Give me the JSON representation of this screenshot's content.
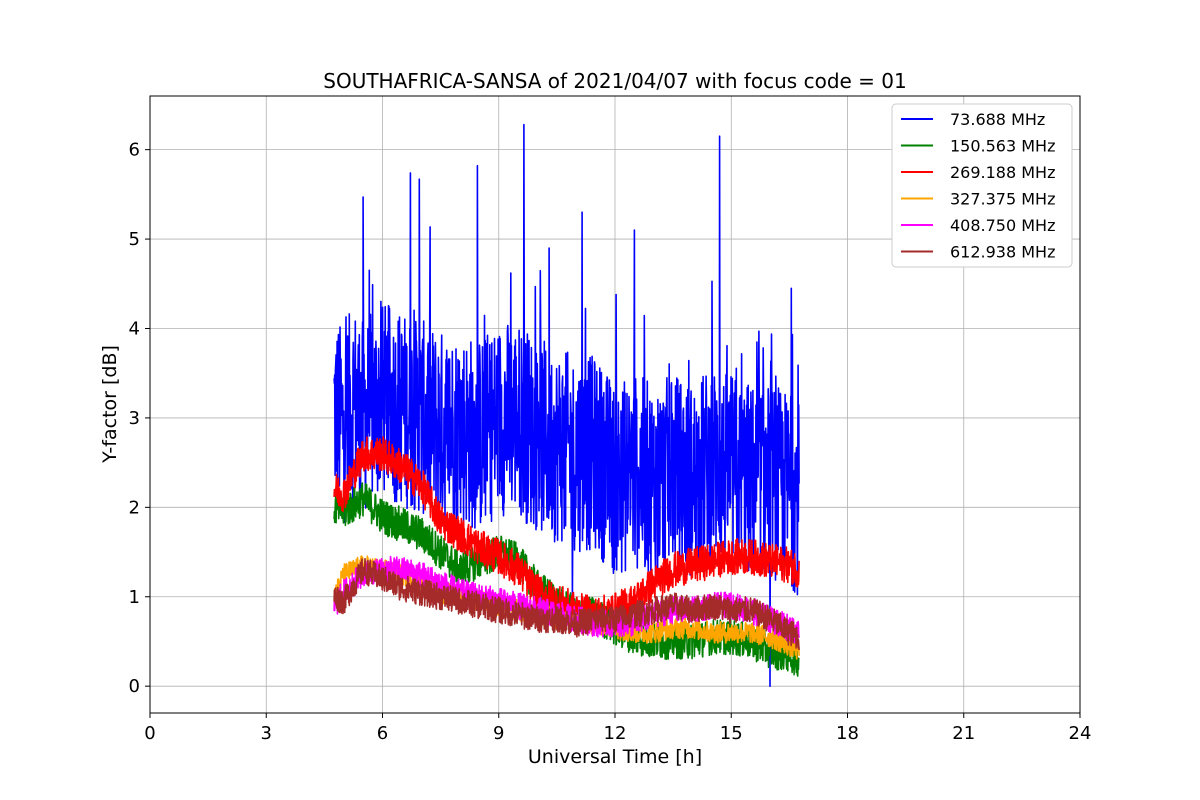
{
  "chart_data": {
    "type": "line",
    "title": "SOUTHAFRICA-SANSA of 2021/04/07 with focus code = 01",
    "xlabel": "Universal Time [h]",
    "ylabel": "Y-factor [dB]",
    "xlim": [
      0,
      24
    ],
    "ylim": [
      -0.3,
      6.6
    ],
    "xticks": [
      0,
      3,
      6,
      9,
      12,
      15,
      18,
      21,
      24
    ],
    "yticks": [
      0,
      1,
      2,
      3,
      4,
      5,
      6
    ],
    "grid": true,
    "legend_position": "top-right",
    "series": [
      {
        "name": " 73.688 MHz",
        "color": "#0000ff",
        "x": [
          4.75,
          5.0,
          5.25,
          5.5,
          5.75,
          6.0,
          6.5,
          7.0,
          7.5,
          8.0,
          8.5,
          9.0,
          9.5,
          10.0,
          10.5,
          11.0,
          11.5,
          12.0,
          12.5,
          13.0,
          13.5,
          14.0,
          14.5,
          15.0,
          15.5,
          16.0,
          16.5,
          16.75
        ],
        "values": [
          3.1,
          2.9,
          3.2,
          3.0,
          3.1,
          3.2,
          3.1,
          3.0,
          2.9,
          2.9,
          2.8,
          3.0,
          3.0,
          2.8,
          2.7,
          2.6,
          2.6,
          2.3,
          2.4,
          2.3,
          2.4,
          2.3,
          2.5,
          2.4,
          2.3,
          2.3,
          2.2,
          2.1
        ],
        "spikes": [
          [
            5.5,
            5.47
          ],
          [
            6.72,
            5.74
          ],
          [
            6.95,
            5.67
          ],
          [
            8.45,
            5.82
          ],
          [
            9.65,
            6.28
          ],
          [
            10.3,
            4.9
          ],
          [
            11.15,
            5.3
          ],
          [
            12.5,
            5.1
          ],
          [
            14.7,
            6.15
          ],
          [
            16.55,
            4.45
          ]
        ],
        "dips": [
          [
            10.9,
            1.0
          ],
          [
            13.1,
            1.2
          ],
          [
            16.0,
            0.0
          ]
        ]
      },
      {
        "name": "150.563 MHz",
        "color": "#008000",
        "x": [
          4.75,
          5.0,
          5.5,
          6.0,
          6.5,
          7.0,
          7.5,
          8.0,
          8.5,
          9.0,
          9.5,
          10.0,
          10.5,
          11.0,
          11.5,
          12.0,
          12.5,
          13.0,
          13.5,
          14.0,
          14.5,
          15.0,
          15.5,
          16.0,
          16.5,
          16.75
        ],
        "values": [
          2.0,
          1.95,
          2.1,
          1.9,
          1.8,
          1.7,
          1.5,
          1.3,
          1.4,
          1.5,
          1.4,
          1.1,
          0.95,
          0.8,
          0.8,
          0.65,
          0.55,
          0.5,
          0.5,
          0.5,
          0.55,
          0.55,
          0.5,
          0.4,
          0.35,
          0.3
        ]
      },
      {
        "name": "269.188 MHz",
        "color": "#ff0000",
        "x": [
          4.75,
          5.0,
          5.5,
          6.0,
          6.5,
          7.0,
          7.5,
          8.0,
          8.5,
          9.0,
          9.5,
          10.0,
          10.5,
          11.0,
          11.5,
          12.0,
          12.5,
          13.0,
          13.5,
          14.0,
          14.5,
          15.0,
          15.5,
          16.0,
          16.5,
          16.75
        ],
        "values": [
          2.2,
          2.15,
          2.6,
          2.6,
          2.45,
          2.25,
          1.85,
          1.7,
          1.55,
          1.45,
          1.3,
          1.05,
          0.95,
          0.85,
          0.8,
          0.85,
          0.95,
          1.15,
          1.3,
          1.35,
          1.4,
          1.45,
          1.45,
          1.4,
          1.35,
          1.3
        ]
      },
      {
        "name": "327.375 MHz",
        "color": "#ffa500",
        "x": [
          4.75,
          5.0,
          5.5,
          6.0,
          6.5,
          7.0,
          7.5,
          8.0,
          8.5,
          9.0,
          9.5,
          10.0,
          10.5,
          11.0,
          11.5,
          12.0,
          12.5,
          13.0,
          13.5,
          14.0,
          14.5,
          15.0,
          15.5,
          16.0,
          16.5,
          16.75
        ],
        "values": [
          1.0,
          1.25,
          1.35,
          1.3,
          1.25,
          1.15,
          1.05,
          1.0,
          0.95,
          0.9,
          0.85,
          0.8,
          0.75,
          0.7,
          0.7,
          0.65,
          0.6,
          0.6,
          0.65,
          0.65,
          0.6,
          0.6,
          0.6,
          0.55,
          0.45,
          0.4
        ]
      },
      {
        "name": "408.750 MHz",
        "color": "#ff00ff",
        "x": [
          4.75,
          5.0,
          5.5,
          6.0,
          6.5,
          7.0,
          7.5,
          8.0,
          8.5,
          9.0,
          9.5,
          10.0,
          10.5,
          11.0,
          11.5,
          12.0,
          12.5,
          13.0,
          13.5,
          14.0,
          14.5,
          15.0,
          15.5,
          16.0,
          16.5,
          16.75
        ],
        "values": [
          0.9,
          1.05,
          1.25,
          1.3,
          1.3,
          1.25,
          1.15,
          1.05,
          1.0,
          0.95,
          0.9,
          0.85,
          0.8,
          0.75,
          0.7,
          0.7,
          0.7,
          0.8,
          0.85,
          0.85,
          0.9,
          0.9,
          0.85,
          0.75,
          0.65,
          0.6
        ]
      },
      {
        "name": "612.938 MHz",
        "color": "#a52a2a",
        "x": [
          4.75,
          5.0,
          5.5,
          6.0,
          6.5,
          7.0,
          7.5,
          8.0,
          8.5,
          9.0,
          9.5,
          10.0,
          10.5,
          11.0,
          11.5,
          12.0,
          12.5,
          13.0,
          13.5,
          14.0,
          14.5,
          15.0,
          15.5,
          16.0,
          16.5,
          16.75
        ],
        "values": [
          1.0,
          0.95,
          1.3,
          1.2,
          1.1,
          1.05,
          1.0,
          0.95,
          0.9,
          0.85,
          0.8,
          0.75,
          0.75,
          0.7,
          0.75,
          0.75,
          0.8,
          0.85,
          0.9,
          0.85,
          0.9,
          0.85,
          0.85,
          0.75,
          0.6,
          0.55
        ]
      }
    ]
  }
}
